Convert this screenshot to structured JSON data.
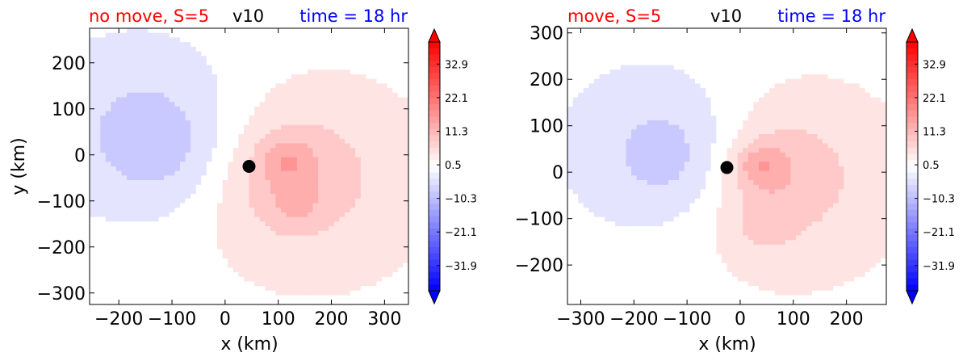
{
  "chart_data": [
    {
      "type": "heatmap",
      "title_left": "no move, S=5",
      "title_center": "v10",
      "title_right": "time = 18 hr",
      "title_colors": {
        "left": "#ff0000",
        "center": "#000000",
        "right": "#0000ff"
      },
      "xlabel": "x (km)",
      "ylabel": "y (km)",
      "xlim": [
        -255,
        345
      ],
      "ylim": [
        -325,
        275
      ],
      "xticks": [
        -200,
        -100,
        0,
        100,
        200,
        300
      ],
      "xtick_labels": [
        "−200",
        "−100",
        "0",
        "100",
        "200",
        "300"
      ],
      "yticks": [
        -300,
        -200,
        -100,
        0,
        100,
        200
      ],
      "ytick_labels": [
        "−300",
        "−200",
        "−100",
        "0",
        "100",
        "200"
      ],
      "storm_center": {
        "x": 45,
        "y": -25
      },
      "colorbar": {
        "range": [
          -40,
          40
        ],
        "ticks": [
          32.9,
          22.1,
          11.3,
          0.5,
          -10.3,
          -21.1,
          -31.9
        ],
        "tick_labels": [
          "32.9",
          "22.1",
          "11.3",
          "0.5",
          "−10.3",
          "−21.1",
          "−31.9"
        ],
        "cmap": "bwr",
        "extend": "both"
      },
      "field_blobs": [
        {
          "x": -150,
          "y": 60,
          "r": 200,
          "v": -7
        },
        {
          "x": -100,
          "y": 0,
          "r": 120,
          "v": -4
        },
        {
          "x": 170,
          "y": -60,
          "r": 260,
          "v": 5
        },
        {
          "x": 110,
          "y": -40,
          "r": 140,
          "v": 6
        },
        {
          "x": 115,
          "y": -15,
          "r": 50,
          "v": 6
        },
        {
          "x": 130,
          "y": -110,
          "r": 45,
          "v": 4
        }
      ]
    },
    {
      "type": "heatmap",
      "title_left": "move, S=5",
      "title_center": "v10",
      "title_right": "time = 18 hr",
      "title_colors": {
        "left": "#ff0000",
        "center": "#000000",
        "right": "#0000ff"
      },
      "xlabel": "x (km)",
      "ylabel": "",
      "xlim": [
        -325,
        275
      ],
      "ylim": [
        -285,
        310
      ],
      "xticks": [
        -300,
        -200,
        -100,
        0,
        100,
        200
      ],
      "xtick_labels": [
        "−300",
        "−200",
        "−100",
        "0",
        "100",
        "200"
      ],
      "yticks": [
        -200,
        -100,
        0,
        100,
        200,
        300
      ],
      "ytick_labels": [
        "−200",
        "−100",
        "0",
        "100",
        "200",
        "300"
      ],
      "storm_center": {
        "x": -25,
        "y": 10
      },
      "colorbar": {
        "range": [
          -40,
          40
        ],
        "ticks": [
          32.9,
          22.1,
          11.3,
          0.5,
          -10.3,
          -21.1,
          -31.9
        ],
        "tick_labels": [
          "32.9",
          "22.1",
          "11.3",
          "0.5",
          "−10.3",
          "−21.1",
          "−31.9"
        ],
        "cmap": "bwr",
        "extend": "both"
      },
      "field_blobs": [
        {
          "x": -140,
          "y": 50,
          "r": 190,
          "v": -7
        },
        {
          "x": -110,
          "y": 20,
          "r": 110,
          "v": -4
        },
        {
          "x": 90,
          "y": -20,
          "r": 240,
          "v": 6
        },
        {
          "x": 55,
          "y": 0,
          "r": 120,
          "v": 6
        },
        {
          "x": 35,
          "y": 15,
          "r": 45,
          "v": 7
        },
        {
          "x": 40,
          "y": -120,
          "r": 60,
          "v": 3
        }
      ]
    }
  ]
}
